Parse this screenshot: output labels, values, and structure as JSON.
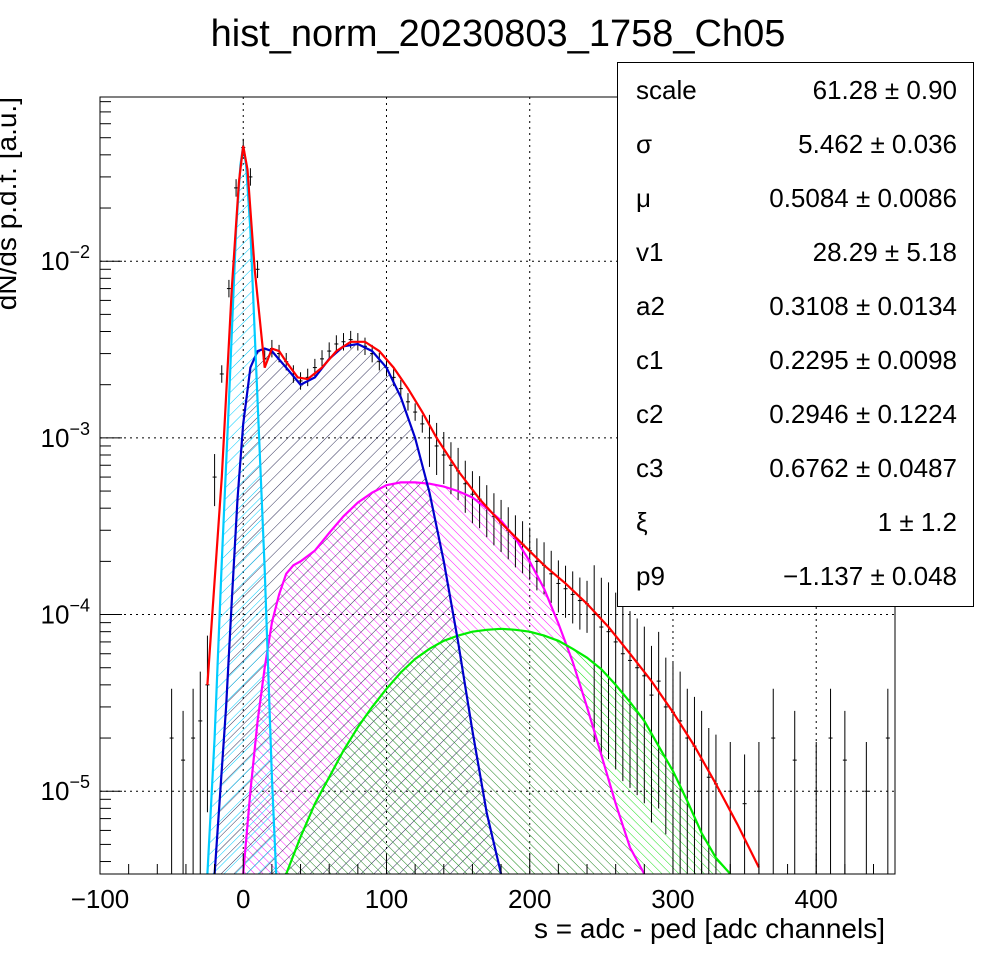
{
  "chart_data": {
    "type": "line",
    "title": "hist_norm_20230803_1758_Ch05",
    "xlabel": "s = adc - ped [adc channels]",
    "ylabel": "dN/ds p.d.f. [a.u.]",
    "xlim": [
      -100,
      455
    ],
    "ylim": [
      3.4e-06,
      0.085
    ],
    "yscale": "log",
    "grid": true,
    "x_ticks": [
      {
        "value": -100,
        "label": "−100"
      },
      {
        "value": 0,
        "label": "0"
      },
      {
        "value": 100,
        "label": "100"
      },
      {
        "value": 200,
        "label": "200"
      },
      {
        "value": 300,
        "label": "300"
      },
      {
        "value": 400,
        "label": "400"
      }
    ],
    "y_ticks": [
      {
        "value": 1e-05,
        "base": "10",
        "exp": "−5"
      },
      {
        "value": 0.0001,
        "base": "10",
        "exp": "−4"
      },
      {
        "value": 0.001,
        "base": "10",
        "exp": "−3"
      },
      {
        "value": 0.01,
        "base": "10",
        "exp": "−2"
      }
    ],
    "series": [
      {
        "color": "#ff0000",
        "x": [
          -25,
          -15,
          -8,
          -3,
          0,
          3,
          8,
          15,
          20,
          25,
          30,
          38,
          45,
          55,
          65,
          75,
          85,
          95,
          105,
          115,
          125,
          135,
          150,
          165,
          180,
          195,
          210,
          225,
          240,
          255,
          270,
          285,
          300,
          315,
          330,
          345,
          360
        ],
        "y": [
          4e-05,
          0.0006,
          0.007,
          0.028,
          0.045,
          0.033,
          0.009,
          0.0025,
          0.0032,
          0.0031,
          0.0027,
          0.0022,
          0.00215,
          0.0025,
          0.0031,
          0.0035,
          0.0035,
          0.0031,
          0.0025,
          0.0019,
          0.0014,
          0.001,
          0.00065,
          0.00045,
          0.00033,
          0.00025,
          0.00019,
          0.00015,
          0.000115,
          8.5e-05,
          6e-05,
          4.2e-05,
          2.8e-05,
          1.8e-05,
          1.1e-05,
          6.5e-06,
          3.7e-06
        ]
      },
      {
        "color": "#00ccff",
        "fill": true,
        "x": [
          -25,
          -20,
          -15,
          -10,
          -5,
          -2,
          0,
          2,
          5,
          10,
          15,
          20,
          23
        ],
        "y": [
          3.4e-06,
          2e-05,
          0.0002,
          0.0016,
          0.015,
          0.035,
          0.045,
          0.035,
          0.015,
          0.0016,
          0.00018,
          1.2e-05,
          3.4e-06
        ]
      },
      {
        "color": "#0000cc",
        "fill": true,
        "x": [
          -20,
          -12,
          -8,
          -4,
          0,
          5,
          10,
          15,
          20,
          30,
          40,
          50,
          60,
          70,
          80,
          90,
          100,
          110,
          120,
          130,
          140,
          150,
          160,
          170,
          180
        ],
        "y": [
          3.4e-06,
          3e-05,
          0.00012,
          0.00045,
          0.0012,
          0.0025,
          0.0031,
          0.0032,
          0.0031,
          0.0025,
          0.002,
          0.0022,
          0.0028,
          0.0033,
          0.0034,
          0.0031,
          0.0025,
          0.0017,
          0.001,
          0.00049,
          0.0002,
          7e-05,
          2.2e-05,
          7.5e-06,
          3.4e-06
        ]
      },
      {
        "color": "#ff00ff",
        "fill": true,
        "x": [
          0,
          5,
          10,
          15,
          20,
          25,
          30,
          35,
          40,
          50,
          60,
          70,
          80,
          90,
          100,
          110,
          120,
          130,
          140,
          150,
          160,
          170,
          180,
          190,
          200,
          210,
          220,
          230,
          240,
          250,
          260,
          270,
          280
        ],
        "y": [
          3.4e-06,
          1e-05,
          2.5e-05,
          5e-05,
          9e-05,
          0.00013,
          0.00017,
          0.00019,
          0.0002,
          0.00023,
          0.00029,
          0.00036,
          0.00043,
          0.00049,
          0.00054,
          0.00056,
          0.00056,
          0.00055,
          0.00053,
          0.0005,
          0.00046,
          0.0004,
          0.00034,
          0.00027,
          0.0002,
          0.00014,
          8.9e-05,
          5.4e-05,
          3e-05,
          1.6e-05,
          8.5e-06,
          4.8e-06,
          3.4e-06
        ]
      },
      {
        "color": "#00ee00",
        "fill": true,
        "x": [
          30,
          40,
          50,
          60,
          70,
          80,
          90,
          100,
          110,
          120,
          130,
          140,
          150,
          160,
          170,
          180,
          190,
          200,
          210,
          220,
          230,
          240,
          250,
          260,
          270,
          280,
          290,
          300,
          310,
          320,
          330,
          340
        ],
        "y": [
          3.4e-06,
          5.5e-06,
          8.5e-06,
          1.2e-05,
          1.7e-05,
          2.3e-05,
          3e-05,
          3.8e-05,
          4.7e-05,
          5.6e-05,
          6.4e-05,
          7.1e-05,
          7.6e-05,
          8e-05,
          8.2e-05,
          8.3e-05,
          8.2e-05,
          8e-05,
          7.6e-05,
          7.1e-05,
          6.4e-05,
          5.7e-05,
          4.9e-05,
          4e-05,
          3.2e-05,
          2.5e-05,
          1.8e-05,
          1.3e-05,
          8.8e-06,
          5.8e-06,
          4.2e-06,
          3.4e-06
        ]
      }
    ],
    "data_points": {
      "x": [
        -50,
        -42,
        -35,
        -30,
        -25,
        -20,
        -15,
        -10,
        -5,
        0,
        5,
        10,
        15,
        20,
        25,
        30,
        35,
        40,
        45,
        50,
        55,
        60,
        65,
        70,
        75,
        80,
        85,
        90,
        95,
        100,
        105,
        110,
        115,
        120,
        125,
        130,
        135,
        140,
        145,
        150,
        155,
        160,
        165,
        170,
        175,
        180,
        185,
        190,
        195,
        200,
        205,
        210,
        215,
        220,
        225,
        230,
        235,
        240,
        245,
        250,
        255,
        260,
        265,
        270,
        275,
        280,
        285,
        290,
        295,
        300,
        305,
        310,
        315,
        320,
        325,
        330,
        340,
        350,
        360,
        370,
        385,
        400,
        410,
        420,
        435,
        450
      ],
      "y": [
        2e-05,
        1.5e-05,
        2e-05,
        2.5e-05,
        4e-05,
        0.0006,
        0.0023,
        0.007,
        0.026,
        0.044,
        0.03,
        0.009,
        0.0028,
        0.0032,
        0.003,
        0.0027,
        0.0023,
        0.0021,
        0.0022,
        0.0025,
        0.0028,
        0.0031,
        0.0034,
        0.0035,
        0.0036,
        0.0035,
        0.0033,
        0.003,
        0.0027,
        0.0025,
        0.0022,
        0.0019,
        0.0016,
        0.0014,
        0.0012,
        0.001,
        0.0009,
        0.0008,
        0.0007,
        0.00065,
        0.00055,
        0.00048,
        0.00045,
        0.0004,
        0.00036,
        0.00033,
        0.0003,
        0.00027,
        0.00025,
        0.00023,
        0.0002,
        0.00019,
        0.00017,
        0.00015,
        0.00014,
        0.00013,
        0.00012,
        0.000115,
        0.0001,
        8.5e-05,
        8e-05,
        7e-05,
        6e-05,
        5.5e-05,
        5e-05,
        4.5e-05,
        3.5e-05,
        4.2e-05,
        3e-05,
        2.8e-05,
        2.5e-05,
        2e-05,
        1.8e-05,
        1.5e-05,
        1.2e-05,
        1.1e-05,
        1e-05,
        8.5e-06,
        1e-05,
        2e-05,
        1.5e-05,
        1e-05,
        2e-05,
        1.5e-05,
        1e-05,
        2e-05
      ]
    },
    "stats": [
      {
        "name": "scale",
        "value": "61.28 ± 0.90"
      },
      {
        "name": "σ",
        "value": "5.462 ± 0.036"
      },
      {
        "name": "μ",
        "value": "0.5084 ± 0.0086"
      },
      {
        "name": "v1",
        "value": "28.29 ± 5.18"
      },
      {
        "name": "a2",
        "value": "0.3108 ± 0.0134"
      },
      {
        "name": "c1",
        "value": "0.2295 ± 0.0098"
      },
      {
        "name": "c2",
        "value": "0.2946 ± 0.1224"
      },
      {
        "name": "c3",
        "value": "0.6762 ± 0.0487"
      },
      {
        "name": "ξ",
        "value": "1 ± 1.2"
      },
      {
        "name": "p9",
        "value": "−1.137 ± 0.048"
      }
    ]
  }
}
